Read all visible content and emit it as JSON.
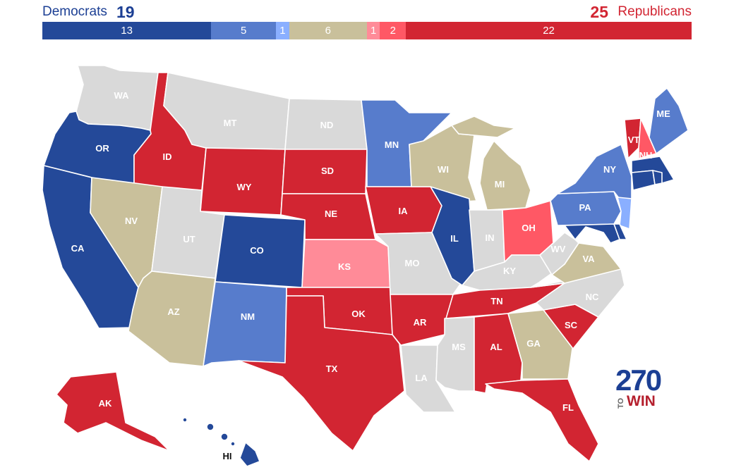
{
  "header": {
    "dem_label": "Democrats",
    "dem_total": "19",
    "rep_total": "25",
    "rep_label": "Republicans"
  },
  "bar": [
    {
      "label": "13",
      "value": 13,
      "color": "#244999"
    },
    {
      "label": "5",
      "value": 5,
      "color": "#577ccc"
    },
    {
      "label": "1",
      "value": 1,
      "color": "#8aafff"
    },
    {
      "label": "6",
      "value": 6,
      "color": "#c9c09b"
    },
    {
      "label": "1",
      "value": 1,
      "color": "#ff8b98"
    },
    {
      "label": "2",
      "value": 2,
      "color": "#ff5865"
    },
    {
      "label": "22",
      "value": 22,
      "color": "#d22532"
    }
  ],
  "ratings": {
    "safe_dem": "#244999",
    "likely_dem": "#577ccc",
    "lean_dem": "#8aafff",
    "tossup": "#c9c09b",
    "lean_rep": "#ff8b98",
    "likely_rep": "#ff5865",
    "safe_rep": "#d22532",
    "no_race": "#d9d9d9"
  },
  "states": {
    "WA": {
      "label": "WA",
      "rating": "no_race"
    },
    "OR": {
      "label": "OR",
      "rating": "safe_dem"
    },
    "CA": {
      "label": "CA",
      "rating": "safe_dem"
    },
    "ID": {
      "label": "ID",
      "rating": "safe_rep"
    },
    "NV": {
      "label": "NV",
      "rating": "tossup"
    },
    "MT": {
      "label": "MT",
      "rating": "no_race"
    },
    "WY": {
      "label": "WY",
      "rating": "safe_rep"
    },
    "UT": {
      "label": "UT",
      "rating": "no_race"
    },
    "AZ": {
      "label": "AZ",
      "rating": "tossup"
    },
    "CO": {
      "label": "CO",
      "rating": "safe_dem"
    },
    "NM": {
      "label": "NM",
      "rating": "likely_dem"
    },
    "ND": {
      "label": "ND",
      "rating": "no_race"
    },
    "SD": {
      "label": "SD",
      "rating": "safe_rep"
    },
    "NE": {
      "label": "NE",
      "rating": "safe_rep"
    },
    "KS": {
      "label": "KS",
      "rating": "lean_rep"
    },
    "OK": {
      "label": "OK",
      "rating": "safe_rep"
    },
    "TX": {
      "label": "TX",
      "rating": "safe_rep"
    },
    "MN": {
      "label": "MN",
      "rating": "likely_dem"
    },
    "IA": {
      "label": "IA",
      "rating": "safe_rep"
    },
    "MO": {
      "label": "MO",
      "rating": "no_race"
    },
    "AR": {
      "label": "AR",
      "rating": "safe_rep"
    },
    "LA": {
      "label": "LA",
      "rating": "no_race"
    },
    "WI": {
      "label": "WI",
      "rating": "tossup"
    },
    "IL": {
      "label": "IL",
      "rating": "safe_dem"
    },
    "MI": {
      "label": "MI",
      "rating": "tossup"
    },
    "IN": {
      "label": "IN",
      "rating": "no_race"
    },
    "OH": {
      "label": "OH",
      "rating": "likely_rep"
    },
    "KY": {
      "label": "KY",
      "rating": "no_race"
    },
    "TN": {
      "label": "TN",
      "rating": "safe_rep"
    },
    "MS": {
      "label": "MS",
      "rating": "no_race"
    },
    "AL": {
      "label": "AL",
      "rating": "safe_rep"
    },
    "GA": {
      "label": "GA",
      "rating": "tossup"
    },
    "FL": {
      "label": "FL",
      "rating": "safe_rep"
    },
    "SC": {
      "label": "SC",
      "rating": "safe_rep"
    },
    "NC": {
      "label": "NC",
      "rating": "no_race"
    },
    "VA": {
      "label": "VA",
      "rating": "tossup"
    },
    "WV": {
      "label": "WV",
      "rating": "no_race"
    },
    "PA": {
      "label": "PA",
      "rating": "likely_dem"
    },
    "NY": {
      "label": "NY",
      "rating": "likely_dem"
    },
    "VT": {
      "label": "VT",
      "rating": "safe_rep"
    },
    "NH": {
      "label": "NH",
      "rating": "likely_rep"
    },
    "ME": {
      "label": "ME",
      "rating": "likely_dem"
    },
    "MA": {
      "label": "",
      "rating": "safe_dem"
    },
    "CT": {
      "label": "",
      "rating": "safe_dem"
    },
    "RI": {
      "label": "",
      "rating": "safe_dem"
    },
    "NJ": {
      "label": "",
      "rating": "lean_dem"
    },
    "DE": {
      "label": "",
      "rating": "safe_dem"
    },
    "MD": {
      "label": "",
      "rating": "safe_dem"
    },
    "AK": {
      "label": "AK",
      "rating": "safe_rep"
    },
    "HI": {
      "label": "HI",
      "rating": "safe_dem"
    }
  },
  "logo": {
    "number": "270",
    "to": "TO",
    "win": "WIN"
  }
}
